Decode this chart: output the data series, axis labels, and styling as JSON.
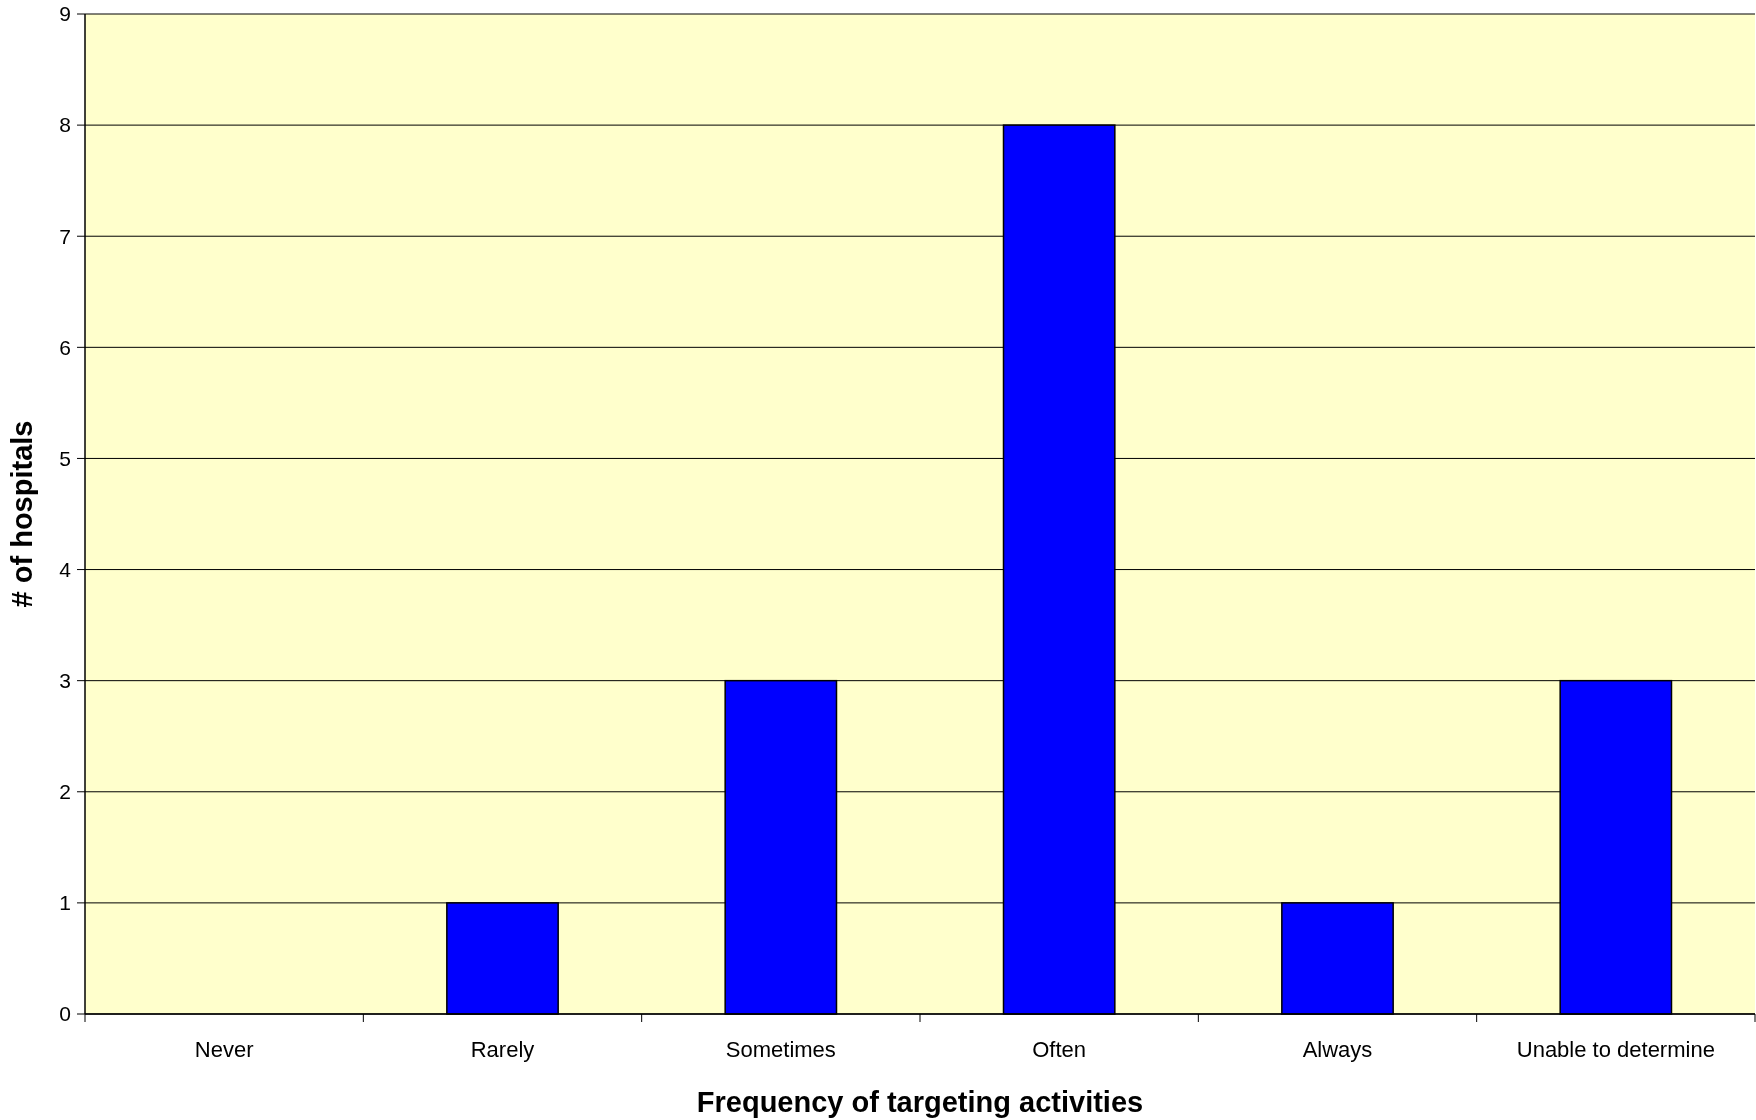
{
  "chart_data": {
    "type": "bar",
    "xlabel": "Frequency of targeting activities",
    "ylabel": "# of hospitals",
    "categories": [
      "Never",
      "Rarely",
      "Sometimes",
      "Often",
      "Always",
      "Unable to determine"
    ],
    "values": [
      0,
      1,
      3,
      8,
      1,
      3
    ],
    "color": "#0000ff",
    "ylim": [
      0,
      9
    ],
    "yticks": [
      0,
      1,
      2,
      3,
      4,
      5,
      6,
      7,
      8,
      9
    ],
    "grid": "y"
  }
}
